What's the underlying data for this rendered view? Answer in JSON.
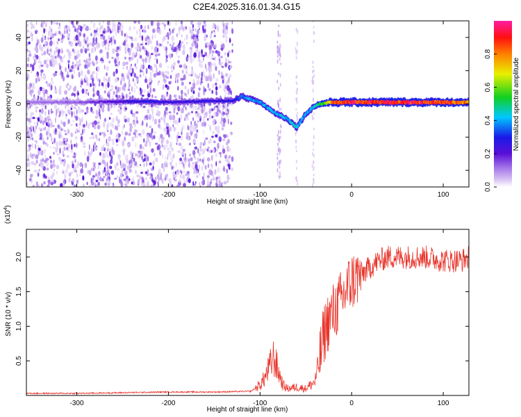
{
  "figure": {
    "title": "C2E4.2025.316.01.34.G15"
  },
  "chart_data": [
    {
      "type": "heatmap",
      "xlabel": "Height of straight line (km)",
      "ylabel": "Frequency (Hz)",
      "xlim": [
        -355,
        128
      ],
      "ylim": [
        -50,
        50
      ],
      "x_ticks": [
        -300,
        -200,
        -100,
        0,
        100
      ],
      "y_ticks": [
        -40,
        -20,
        0,
        20,
        40
      ],
      "colorbar": {
        "label": "Normalized spectral amplitude",
        "range": [
          0.0,
          1.0
        ],
        "ticks": [
          0.0,
          0.2,
          0.4,
          0.6,
          0.8
        ],
        "colormap": "rainbow (white-violet-blue-cyan-green-yellow-red-magenta)"
      },
      "signal_track": [
        {
          "x": -355,
          "y": 1.0,
          "amplitude": 0.12
        },
        {
          "x": -300,
          "y": 1.0,
          "amplitude": 0.14
        },
        {
          "x": -220,
          "y": 1.5,
          "amplitude": 0.3
        },
        {
          "x": -200,
          "y": 1.0,
          "amplitude": 0.25
        },
        {
          "x": -130,
          "y": 2.0,
          "amplitude": 0.28
        },
        {
          "x": -120,
          "y": 4.5,
          "amplitude": 0.4
        },
        {
          "x": -100,
          "y": 1.0,
          "amplitude": 0.4
        },
        {
          "x": -85,
          "y": -5.0,
          "amplitude": 0.42
        },
        {
          "x": -70,
          "y": -9.0,
          "amplitude": 0.42
        },
        {
          "x": -60,
          "y": -14.0,
          "amplitude": 0.45
        },
        {
          "x": -50,
          "y": -6.0,
          "amplitude": 0.4
        },
        {
          "x": -40,
          "y": -1.0,
          "amplitude": 0.45
        },
        {
          "x": -30,
          "y": 0.5,
          "amplitude": 0.6
        },
        {
          "x": -20,
          "y": 1.0,
          "amplitude": 0.9
        },
        {
          "x": 0,
          "y": 1.0,
          "amplitude": 0.95
        },
        {
          "x": 50,
          "y": 1.0,
          "amplitude": 0.95
        },
        {
          "x": 100,
          "y": 1.0,
          "amplitude": 0.9
        },
        {
          "x": 128,
          "y": 1.0,
          "amplitude": 0.85
        }
      ],
      "noise_region_x": [
        -355,
        -130
      ]
    },
    {
      "type": "line",
      "xlabel": "Height of straight line (km)",
      "ylabel": "SNR (10 * v/v)",
      "y_multiplier": "(x10^4)",
      "xlim": [
        -355,
        128
      ],
      "ylim": [
        0,
        2.4
      ],
      "x_ticks": [
        -300,
        -200,
        -100,
        0,
        100
      ],
      "y_ticks": [
        0.5,
        1.0,
        1.5,
        2.0
      ],
      "line_color": "#e8342b",
      "series": [
        {
          "x": [
            -355,
            -300,
            -250,
            -200,
            -150,
            -110,
            -100,
            -95,
            -90,
            -85,
            -80,
            -75,
            -70,
            -60,
            -50,
            -40,
            -35,
            -30,
            -25,
            -20,
            -15,
            -10,
            -5,
            0,
            10,
            20,
            30,
            40,
            60,
            80,
            100,
            120,
            128
          ],
          "values": [
            0.03,
            0.03,
            0.04,
            0.05,
            0.05,
            0.06,
            0.15,
            0.25,
            0.4,
            0.55,
            0.35,
            0.15,
            0.1,
            0.12,
            0.1,
            0.2,
            0.5,
            0.9,
            1.1,
            1.2,
            1.3,
            1.4,
            1.55,
            1.65,
            1.75,
            1.85,
            1.95,
            2.0,
            2.0,
            2.0,
            1.95,
            1.95,
            2.0
          ]
        }
      ]
    }
  ]
}
